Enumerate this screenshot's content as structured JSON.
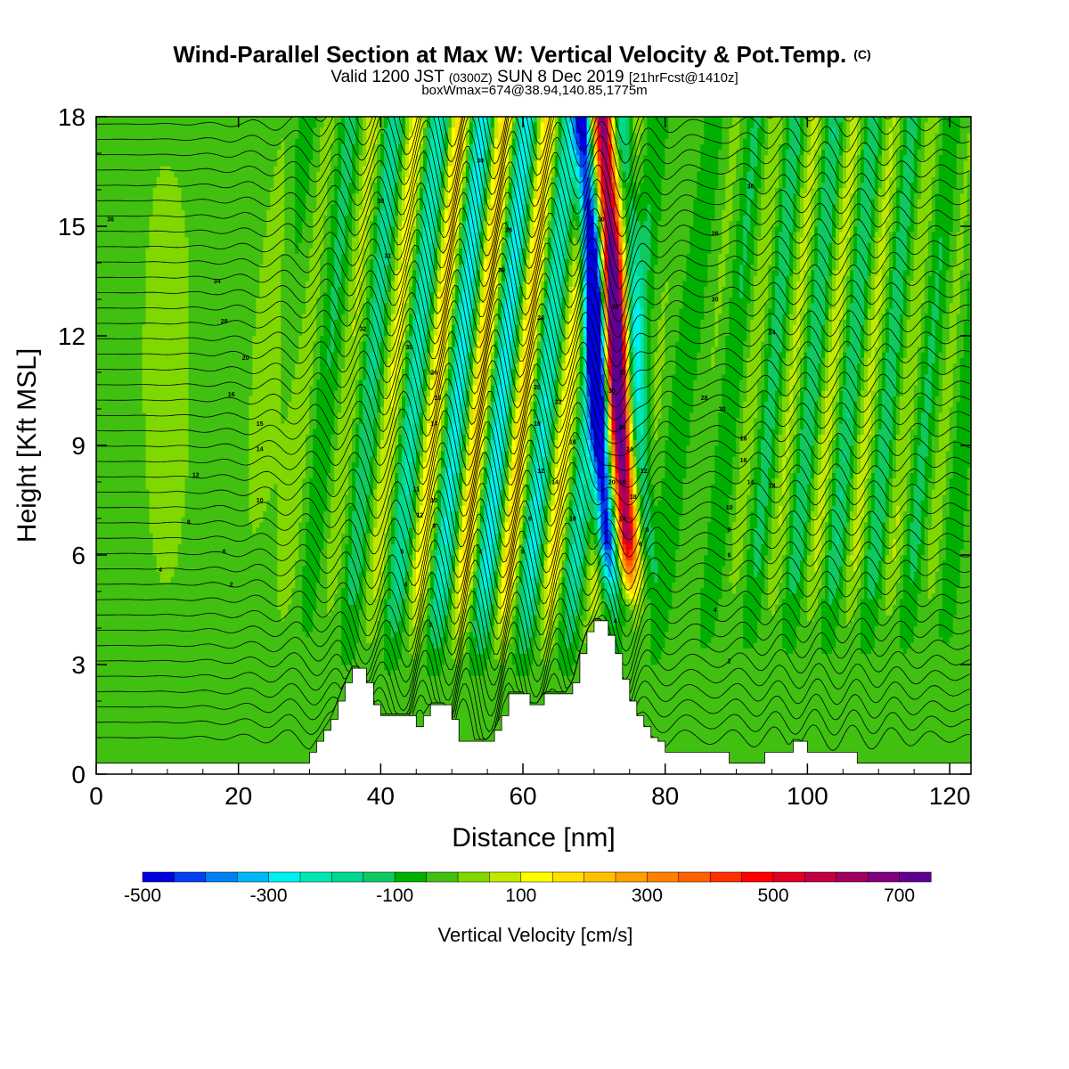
{
  "chart_data": {
    "type": "heatmap",
    "title": "Wind-Parallel Section at Max W: Vertical Velocity & Pot.Temp.",
    "title_mark": "(C)",
    "subtitle": {
      "a": "Valid 1200 JST",
      "b": "(0300Z)",
      "c": "SUN 8 Dec 2019",
      "d": "[21hrFcst@1410z]"
    },
    "info": "boxWmax=674@38.94,140.85,1775m",
    "xlabel": "Distance [nm]",
    "ylabel": "Height [Kft MSL]",
    "xlim": [
      0,
      123
    ],
    "ylim": [
      0,
      18
    ],
    "xticks": [
      0,
      20,
      40,
      60,
      80,
      100,
      120
    ],
    "yticks": [
      0,
      3,
      6,
      9,
      12,
      15,
      18
    ],
    "colorbar": {
      "label": "Vertical Velocity [cm/s]",
      "min": -500,
      "max": 750,
      "step": 50,
      "tick_values": [
        -500,
        -300,
        -100,
        100,
        300,
        500,
        700
      ],
      "tick_labels": [
        "-500",
        "-300",
        "-100",
        "100",
        "300",
        "500",
        "700"
      ],
      "colors": [
        "#0000e0",
        "#0040f0",
        "#0080f0",
        "#00b8f8",
        "#00f0f0",
        "#00e8b0",
        "#00d890",
        "#10c860",
        "#00b000",
        "#40c010",
        "#80d800",
        "#c0e800",
        "#ffff00",
        "#ffe000",
        "#ffc000",
        "#ffa000",
        "#ff8000",
        "#ff6000",
        "#ff3000",
        "#ff0000",
        "#e00020",
        "#c00040",
        "#a00060",
        "#800080",
        "#600090"
      ]
    },
    "terrain_top_kft": [
      {
        "x": 0,
        "z": 0.3
      },
      {
        "x": 29,
        "z": 0.3
      },
      {
        "x": 30,
        "z": 0.6
      },
      {
        "x": 31,
        "z": 0.9
      },
      {
        "x": 32,
        "z": 1.2
      },
      {
        "x": 33,
        "z": 1.5
      },
      {
        "x": 34,
        "z": 2.0
      },
      {
        "x": 35,
        "z": 2.5
      },
      {
        "x": 36,
        "z": 2.9
      },
      {
        "x": 37,
        "z": 2.9
      },
      {
        "x": 38,
        "z": 2.5
      },
      {
        "x": 39,
        "z": 1.9
      },
      {
        "x": 40,
        "z": 1.6
      },
      {
        "x": 44,
        "z": 1.6
      },
      {
        "x": 45,
        "z": 1.3
      },
      {
        "x": 46,
        "z": 1.6
      },
      {
        "x": 47,
        "z": 1.9
      },
      {
        "x": 49,
        "z": 1.9
      },
      {
        "x": 50,
        "z": 1.5
      },
      {
        "x": 51,
        "z": 0.9
      },
      {
        "x": 55,
        "z": 0.9
      },
      {
        "x": 56,
        "z": 1.2
      },
      {
        "x": 57,
        "z": 1.6
      },
      {
        "x": 58,
        "z": 2.2
      },
      {
        "x": 60,
        "z": 2.2
      },
      {
        "x": 61,
        "z": 1.9
      },
      {
        "x": 62,
        "z": 1.9
      },
      {
        "x": 63,
        "z": 2.2
      },
      {
        "x": 66,
        "z": 2.2
      },
      {
        "x": 67,
        "z": 2.5
      },
      {
        "x": 68,
        "z": 3.3
      },
      {
        "x": 69,
        "z": 3.9
      },
      {
        "x": 70,
        "z": 4.2
      },
      {
        "x": 71,
        "z": 4.2
      },
      {
        "x": 72,
        "z": 3.8
      },
      {
        "x": 73,
        "z": 3.3
      },
      {
        "x": 74,
        "z": 2.6
      },
      {
        "x": 75,
        "z": 2.0
      },
      {
        "x": 76,
        "z": 1.6
      },
      {
        "x": 77,
        "z": 1.3
      },
      {
        "x": 78,
        "z": 1.0
      },
      {
        "x": 79,
        "z": 0.9
      },
      {
        "x": 80,
        "z": 0.6
      },
      {
        "x": 88,
        "z": 0.6
      },
      {
        "x": 89,
        "z": 0.3
      },
      {
        "x": 93,
        "z": 0.3
      },
      {
        "x": 94,
        "z": 0.6
      },
      {
        "x": 97,
        "z": 0.6
      },
      {
        "x": 98,
        "z": 0.9
      },
      {
        "x": 99,
        "z": 0.9
      },
      {
        "x": 100,
        "z": 0.6
      },
      {
        "x": 106,
        "z": 0.6
      },
      {
        "x": 107,
        "z": 0.3
      },
      {
        "x": 123,
        "z": 0.3
      }
    ],
    "contour_labels": [
      {
        "x": 2,
        "y": 15.2,
        "text": "36"
      },
      {
        "x": 17,
        "y": 13.5,
        "text": "34"
      },
      {
        "x": 18,
        "y": 12.4,
        "text": "28"
      },
      {
        "x": 21,
        "y": 11.4,
        "text": "20"
      },
      {
        "x": 19,
        "y": 10.4,
        "text": "16"
      },
      {
        "x": 23,
        "y": 9.6,
        "text": "15"
      },
      {
        "x": 23,
        "y": 8.9,
        "text": "14"
      },
      {
        "x": 14,
        "y": 8.2,
        "text": "12"
      },
      {
        "x": 23,
        "y": 7.5,
        "text": "10"
      },
      {
        "x": 13,
        "y": 6.9,
        "text": "8"
      },
      {
        "x": 18,
        "y": 6.1,
        "text": "6"
      },
      {
        "x": 9,
        "y": 5.6,
        "text": "4"
      },
      {
        "x": 19,
        "y": 5.2,
        "text": "2"
      },
      {
        "x": 40,
        "y": 15.7,
        "text": "38"
      },
      {
        "x": 41,
        "y": 14.2,
        "text": "31"
      },
      {
        "x": 37.5,
        "y": 12.2,
        "text": "32"
      },
      {
        "x": 44,
        "y": 11.7,
        "text": "30"
      },
      {
        "x": 47.5,
        "y": 11.0,
        "text": "26"
      },
      {
        "x": 48,
        "y": 10.3,
        "text": "16"
      },
      {
        "x": 47.5,
        "y": 9.6,
        "text": "14"
      },
      {
        "x": 45,
        "y": 7.8,
        "text": "11"
      },
      {
        "x": 47.5,
        "y": 7.5,
        "text": "10"
      },
      {
        "x": 45.5,
        "y": 7.1,
        "text": "12"
      },
      {
        "x": 47.5,
        "y": 6.8,
        "text": "8"
      },
      {
        "x": 43,
        "y": 6.1,
        "text": "6"
      },
      {
        "x": 43.5,
        "y": 5.2,
        "text": "4"
      },
      {
        "x": 47,
        "y": 4.1,
        "text": "2"
      },
      {
        "x": 54,
        "y": 16.8,
        "text": "30"
      },
      {
        "x": 58,
        "y": 14.9,
        "text": "26"
      },
      {
        "x": 57,
        "y": 13.8,
        "text": "30"
      },
      {
        "x": 62.5,
        "y": 12.5,
        "text": "24"
      },
      {
        "x": 62,
        "y": 10.6,
        "text": "20"
      },
      {
        "x": 65,
        "y": 10.2,
        "text": "22"
      },
      {
        "x": 62,
        "y": 9.6,
        "text": "18"
      },
      {
        "x": 67,
        "y": 9.1,
        "text": "16"
      },
      {
        "x": 62.5,
        "y": 8.3,
        "text": "12"
      },
      {
        "x": 64.5,
        "y": 8.0,
        "text": "14"
      },
      {
        "x": 54,
        "y": 6.1,
        "text": "4"
      },
      {
        "x": 61,
        "y": 7.0,
        "text": "6"
      },
      {
        "x": 67,
        "y": 7.0,
        "text": "10"
      },
      {
        "x": 60,
        "y": 6.1,
        "text": "8"
      },
      {
        "x": 71,
        "y": 15.2,
        "text": "30"
      },
      {
        "x": 73,
        "y": 12.8,
        "text": "28"
      },
      {
        "x": 72.5,
        "y": 10.5,
        "text": "30"
      },
      {
        "x": 74,
        "y": 11.0,
        "text": "32"
      },
      {
        "x": 74,
        "y": 9.5,
        "text": "26"
      },
      {
        "x": 75,
        "y": 8.9,
        "text": "24"
      },
      {
        "x": 72.5,
        "y": 8.0,
        "text": "20"
      },
      {
        "x": 74,
        "y": 8.0,
        "text": "16"
      },
      {
        "x": 75.5,
        "y": 7.6,
        "text": "18"
      },
      {
        "x": 77,
        "y": 8.3,
        "text": "12"
      },
      {
        "x": 74,
        "y": 7.0,
        "text": "14"
      },
      {
        "x": 77.5,
        "y": 6.7,
        "text": "8"
      },
      {
        "x": 76.5,
        "y": 6.3,
        "text": "6"
      },
      {
        "x": 73,
        "y": 4.2,
        "text": "4"
      },
      {
        "x": 92,
        "y": 16.1,
        "text": "30"
      },
      {
        "x": 87,
        "y": 14.8,
        "text": "26"
      },
      {
        "x": 87,
        "y": 13.0,
        "text": "30"
      },
      {
        "x": 95,
        "y": 12.1,
        "text": "24"
      },
      {
        "x": 85.5,
        "y": 10.3,
        "text": "28"
      },
      {
        "x": 88,
        "y": 10.0,
        "text": "30"
      },
      {
        "x": 91,
        "y": 9.2,
        "text": "18"
      },
      {
        "x": 91,
        "y": 8.6,
        "text": "16"
      },
      {
        "x": 92,
        "y": 8.0,
        "text": "14"
      },
      {
        "x": 95,
        "y": 7.9,
        "text": "12"
      },
      {
        "x": 89,
        "y": 7.3,
        "text": "10"
      },
      {
        "x": 89,
        "y": 6.7,
        "text": "8"
      },
      {
        "x": 89,
        "y": 6.0,
        "text": "6"
      },
      {
        "x": 87,
        "y": 4.5,
        "text": "4"
      },
      {
        "x": 89,
        "y": 3.1,
        "text": "2"
      }
    ]
  }
}
